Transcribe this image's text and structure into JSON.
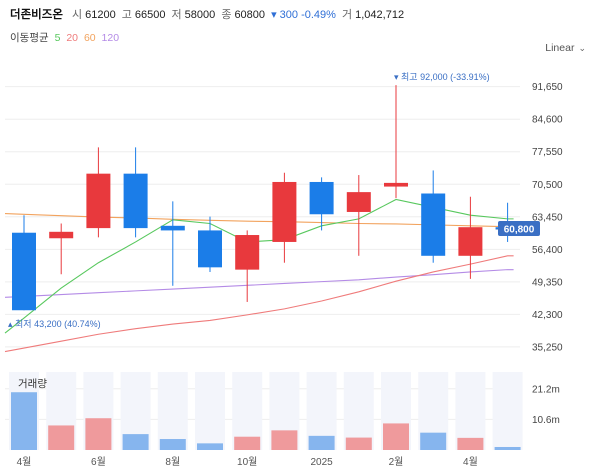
{
  "header": {
    "title": "더존비즈온",
    "open_label": "시",
    "open": "61200",
    "high_label": "고",
    "high": "66500",
    "low_label": "저",
    "low": "58000",
    "close_label": "종",
    "close": "60800",
    "change": "▾ 300 -0.49%",
    "volume_label": "거",
    "volume": "1,042,712"
  },
  "moving_average": {
    "label": "이동평균",
    "ma5": "5",
    "ma20": "20",
    "ma60": "60",
    "ma120": "120"
  },
  "scale": {
    "label": "Linear"
  },
  "colors": {
    "up": "#e8393d",
    "down": "#1b7de8",
    "ma5": "#58c85e",
    "ma20": "#ef7b7b",
    "ma60": "#f2a35e",
    "ma120": "#b48be6",
    "current": "#3a6fc4"
  },
  "chart_data": {
    "type": "candlestick",
    "x_labels": [
      "4월",
      "6월",
      "8월",
      "10월",
      "2025",
      "2월",
      "4월"
    ],
    "y_ticks": [
      "91,650",
      "84,600",
      "77,550",
      "70,500",
      "63,450",
      "56,400",
      "49,350",
      "42,300",
      "35,250"
    ],
    "y_tick_values": [
      91650,
      84600,
      77550,
      70500,
      63450,
      56400,
      49350,
      42300,
      35250
    ],
    "y_range": [
      33500,
      97000
    ],
    "candles": [
      {
        "open": 60000,
        "close": 43200,
        "high": 63800,
        "low": 43200
      },
      {
        "open": 58800,
        "close": 60200,
        "high": 62000,
        "low": 51000
      },
      {
        "open": 61000,
        "close": 72800,
        "high": 78500,
        "low": 59000
      },
      {
        "open": 72800,
        "close": 61000,
        "high": 78500,
        "low": 59000
      },
      {
        "open": 61500,
        "close": 60500,
        "high": 66800,
        "low": 48500
      },
      {
        "open": 60500,
        "close": 52500,
        "high": 63500,
        "low": 51500
      },
      {
        "open": 52000,
        "close": 59500,
        "high": 60500,
        "low": 45000
      },
      {
        "open": 58000,
        "close": 71000,
        "high": 73000,
        "low": 53500
      },
      {
        "open": 71000,
        "close": 64000,
        "high": 72000,
        "low": 60500
      },
      {
        "open": 64500,
        "close": 68800,
        "high": 72500,
        "low": 55000
      },
      {
        "open": 70000,
        "close": 70800,
        "high": 92000,
        "low": 67500
      },
      {
        "open": 68500,
        "close": 55000,
        "high": 73500,
        "low": 53500
      },
      {
        "open": 55000,
        "close": 61200,
        "high": 67800,
        "low": 50000
      },
      {
        "open": 61200,
        "close": 60800,
        "high": 66500,
        "low": 58000
      }
    ],
    "ma5": [
      41500,
      48000,
      53500,
      58000,
      62800,
      62000,
      58000,
      58500,
      61500,
      63000,
      67200,
      65500,
      63800,
      63000
    ],
    "ma20": [
      35000,
      36500,
      38000,
      39200,
      40200,
      41000,
      42200,
      43500,
      45200,
      47200,
      49500,
      51500,
      53200,
      55000
    ],
    "ma60": [
      64000,
      63700,
      63400,
      63200,
      62900,
      62700,
      62500,
      62400,
      62200,
      62000,
      61900,
      61700,
      61500,
      61300
    ],
    "ma120": [
      46200,
      46600,
      47000,
      47400,
      47800,
      48200,
      48600,
      49000,
      49400,
      49800,
      50400,
      50900,
      51500,
      52000
    ],
    "high_note": "▾ 최고 92,000 (-33.91%)",
    "low_note": "▴ 최저 43,200 (40.74%)",
    "current_price": 60800,
    "current_price_label": "60,800",
    "volume": {
      "label": "거래량",
      "ticks": [
        "21.2m",
        "10.6m"
      ],
      "tick_values": [
        21200000,
        10600000
      ],
      "max": 27000000,
      "values": [
        20000000,
        8500000,
        11000000,
        5500000,
        3800000,
        2300000,
        4600000,
        6800000,
        4900000,
        4300000,
        9200000,
        6000000,
        4200000,
        1042712
      ]
    }
  }
}
